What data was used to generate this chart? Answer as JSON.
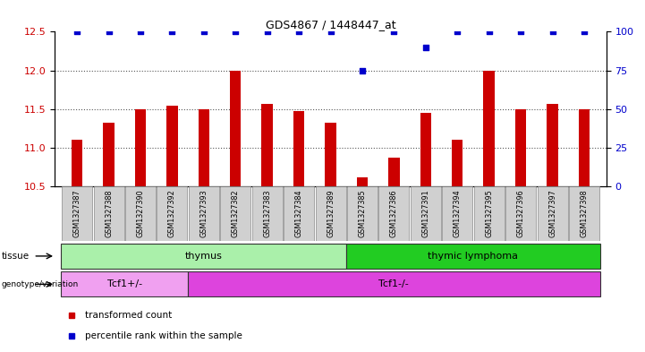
{
  "title": "GDS4867 / 1448447_at",
  "samples": [
    "GSM1327387",
    "GSM1327388",
    "GSM1327390",
    "GSM1327392",
    "GSM1327393",
    "GSM1327382",
    "GSM1327383",
    "GSM1327384",
    "GSM1327389",
    "GSM1327385",
    "GSM1327386",
    "GSM1327391",
    "GSM1327394",
    "GSM1327395",
    "GSM1327396",
    "GSM1327397",
    "GSM1327398"
  ],
  "bar_values": [
    11.1,
    11.32,
    11.5,
    11.55,
    11.5,
    12.0,
    11.57,
    11.47,
    11.32,
    10.62,
    10.87,
    11.45,
    11.1,
    12.0,
    11.5,
    11.57,
    11.5
  ],
  "dot_values": [
    100,
    100,
    100,
    100,
    100,
    100,
    100,
    100,
    100,
    75,
    100,
    90,
    100,
    100,
    100,
    100,
    100
  ],
  "ylim_left": [
    10.5,
    12.5
  ],
  "ylim_right": [
    0,
    100
  ],
  "yticks_left": [
    10.5,
    11.0,
    11.5,
    12.0,
    12.5
  ],
  "yticks_right": [
    0,
    25,
    50,
    75,
    100
  ],
  "bar_color": "#cc0000",
  "dot_color": "#0000cc",
  "bar_bottom": 10.5,
  "tissue_groups": [
    {
      "label": "thymus",
      "start": 0,
      "end": 9,
      "color": "#aaf0aa"
    },
    {
      "label": "thymic lymphoma",
      "start": 9,
      "end": 17,
      "color": "#22cc22"
    }
  ],
  "genotype_groups": [
    {
      "label": "Tcf1+/-",
      "start": 0,
      "end": 4,
      "color": "#f0a0f0"
    },
    {
      "label": "Tcf1-/-",
      "start": 4,
      "end": 17,
      "color": "#dd44dd"
    }
  ],
  "tissue_label": "tissue",
  "genotype_label": "genotype/variation",
  "legend_items": [
    {
      "color": "#cc0000",
      "label": "transformed count"
    },
    {
      "color": "#0000cc",
      "label": "percentile rank within the sample"
    }
  ],
  "grid_color": "#555555",
  "bg_color": "#ffffff",
  "tick_bg": "#d0d0d0"
}
